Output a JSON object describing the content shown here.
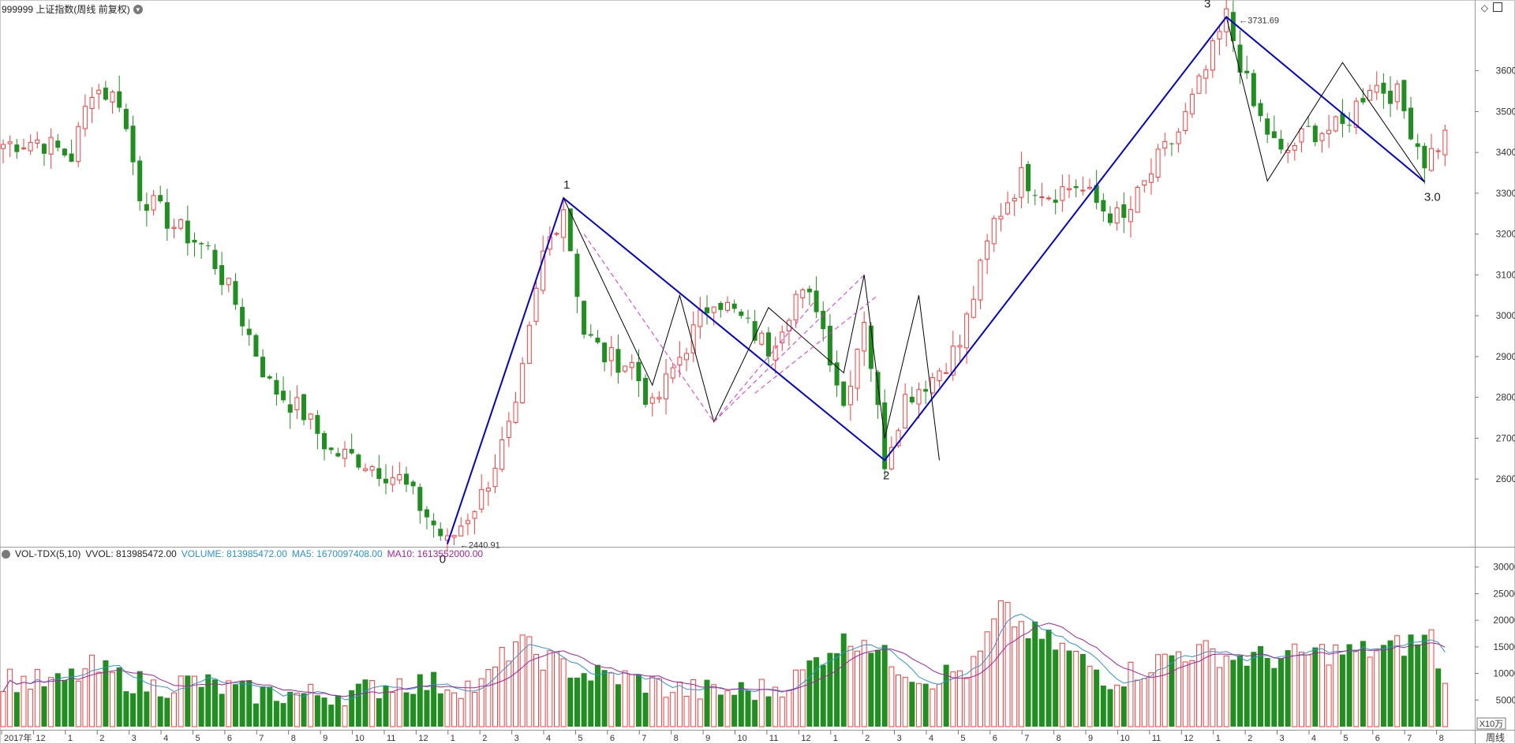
{
  "header": {
    "title": "999999 上证指数(周线 前复权)",
    "diamond_icon": "diamond-icon",
    "panel_icon": "panel-toggle-icon"
  },
  "volume_header": {
    "indicator": "VOL-TDX(5,10)",
    "vvol": "VVOL: 813985472.00",
    "volume": "VOLUME: 813985472.00",
    "ma5": "MA5: 1670097408.00",
    "ma10": "MA10: 1613552000.00"
  },
  "period_label": "周线",
  "volume_unit": "X10万",
  "colors": {
    "up": "#ff3b3b",
    "down": "#1f8f1f",
    "wave_main": "#0000dd",
    "wave_sub": "#000000",
    "wave_dashed": "#dd33cc",
    "vol_ma5": "#2a92d8",
    "vol_ma10": "#a6219e",
    "volume_text": "#2a92d8"
  },
  "chart_data": [
    {
      "type": "candlestick",
      "title": "999999 上证指数(周线 前复权)",
      "x_labels": [
        "2017年",
        "12",
        "1",
        "2",
        "3",
        "4",
        "5",
        "6",
        "7",
        "8",
        "9",
        "10",
        "11",
        "12",
        "1",
        "2",
        "3",
        "4",
        "5",
        "6",
        "7",
        "8",
        "9",
        "10",
        "11",
        "12",
        "1",
        "2",
        "3",
        "4",
        "5",
        "6",
        "7",
        "8",
        "9",
        "10",
        "11",
        "12",
        "1",
        "2",
        "3",
        "4",
        "5",
        "6",
        "7",
        "8"
      ],
      "ylim": [
        2440,
        3750
      ],
      "yticks": [
        2600,
        2700,
        2800,
        2900,
        3000,
        3100,
        3200,
        3300,
        3400,
        3500,
        3600
      ],
      "pivots": [
        {
          "label": "0",
          "value": 2440.91
        },
        {
          "label": "1",
          "value": 3288
        },
        {
          "label": "2",
          "value": 2646
        },
        {
          "label": "3",
          "value": 3731.69
        },
        {
          "label": "3.0",
          "value": 3328
        }
      ],
      "annotations": [
        "2440.91",
        "3731.69"
      ],
      "price_path": [
        [
          0,
          3420
        ],
        [
          5,
          3430
        ],
        [
          10,
          3390
        ],
        [
          13,
          3560
        ],
        [
          17,
          3530
        ],
        [
          20,
          3300
        ],
        [
          25,
          3220
        ],
        [
          30,
          3160
        ],
        [
          34,
          3030
        ],
        [
          39,
          2830
        ],
        [
          44,
          2760
        ],
        [
          48,
          2665
        ],
        [
          52,
          2650
        ],
        [
          58,
          2600
        ],
        [
          62,
          2510
        ],
        [
          65,
          2440.91
        ],
        [
          70,
          2560
        ],
        [
          75,
          2760
        ],
        [
          79,
          3150
        ],
        [
          82,
          3270
        ],
        [
          85,
          2960
        ],
        [
          88,
          2900
        ],
        [
          92,
          2880
        ],
        [
          95,
          2770
        ],
        [
          99,
          2900
        ],
        [
          104,
          3050
        ],
        [
          108,
          2990
        ],
        [
          112,
          2920
        ],
        [
          116,
          3050
        ],
        [
          119,
          3030
        ],
        [
          123,
          2780
        ],
        [
          126,
          3000
        ],
        [
          129,
          2646
        ],
        [
          132,
          2800
        ],
        [
          136,
          2850
        ],
        [
          140,
          2930
        ],
        [
          145,
          3230
        ],
        [
          149,
          3340
        ],
        [
          153,
          3300
        ],
        [
          157,
          3320
        ],
        [
          161,
          3260
        ],
        [
          164,
          3230
        ],
        [
          169,
          3380
        ],
        [
          172,
          3450
        ],
        [
          176,
          3600
        ],
        [
          179,
          3731.69
        ],
        [
          183,
          3510
        ],
        [
          187,
          3390
        ],
        [
          191,
          3450
        ],
        [
          196,
          3460
        ],
        [
          200,
          3570
        ],
        [
          204,
          3540
        ],
        [
          208,
          3380
        ],
        [
          211,
          3440
        ]
      ]
    },
    {
      "type": "bar",
      "title": "VOL-TDX(5,10)",
      "unit": "X10万",
      "ylim": [
        0,
        31000
      ],
      "yticks": [
        5000,
        10000,
        15000,
        20000,
        25000,
        30000
      ],
      "series": [
        {
          "name": "VOLUME",
          "values": [
            8000,
            8139.85
          ]
        },
        {
          "name": "MA5",
          "values": [
            16700.97
          ]
        },
        {
          "name": "MA10",
          "values": [
            16135.52
          ]
        }
      ],
      "volume_path": [
        [
          0,
          9000
        ],
        [
          8,
          8000
        ],
        [
          13,
          11000
        ],
        [
          18,
          9000
        ],
        [
          22,
          7500
        ],
        [
          28,
          8500
        ],
        [
          35,
          6500
        ],
        [
          45,
          6000
        ],
        [
          52,
          6500
        ],
        [
          58,
          8500
        ],
        [
          64,
          8000
        ],
        [
          70,
          7500
        ],
        [
          75,
          16000
        ],
        [
          79,
          13000
        ],
        [
          85,
          10000
        ],
        [
          92,
          9000
        ],
        [
          98,
          7000
        ],
        [
          105,
          6500
        ],
        [
          112,
          7000
        ],
        [
          116,
          9000
        ],
        [
          121,
          15000
        ],
        [
          126,
          17000
        ],
        [
          129,
          13000
        ],
        [
          135,
          9000
        ],
        [
          142,
          11000
        ],
        [
          146,
          22000
        ],
        [
          150,
          18000
        ],
        [
          156,
          14000
        ],
        [
          162,
          9000
        ],
        [
          167,
          11000
        ],
        [
          172,
          14000
        ],
        [
          176,
          14000
        ],
        [
          181,
          13000
        ],
        [
          188,
          13000
        ],
        [
          193,
          14000
        ],
        [
          198,
          14000
        ],
        [
          204,
          15000
        ],
        [
          209,
          17000
        ],
        [
          211,
          8140
        ]
      ]
    }
  ]
}
